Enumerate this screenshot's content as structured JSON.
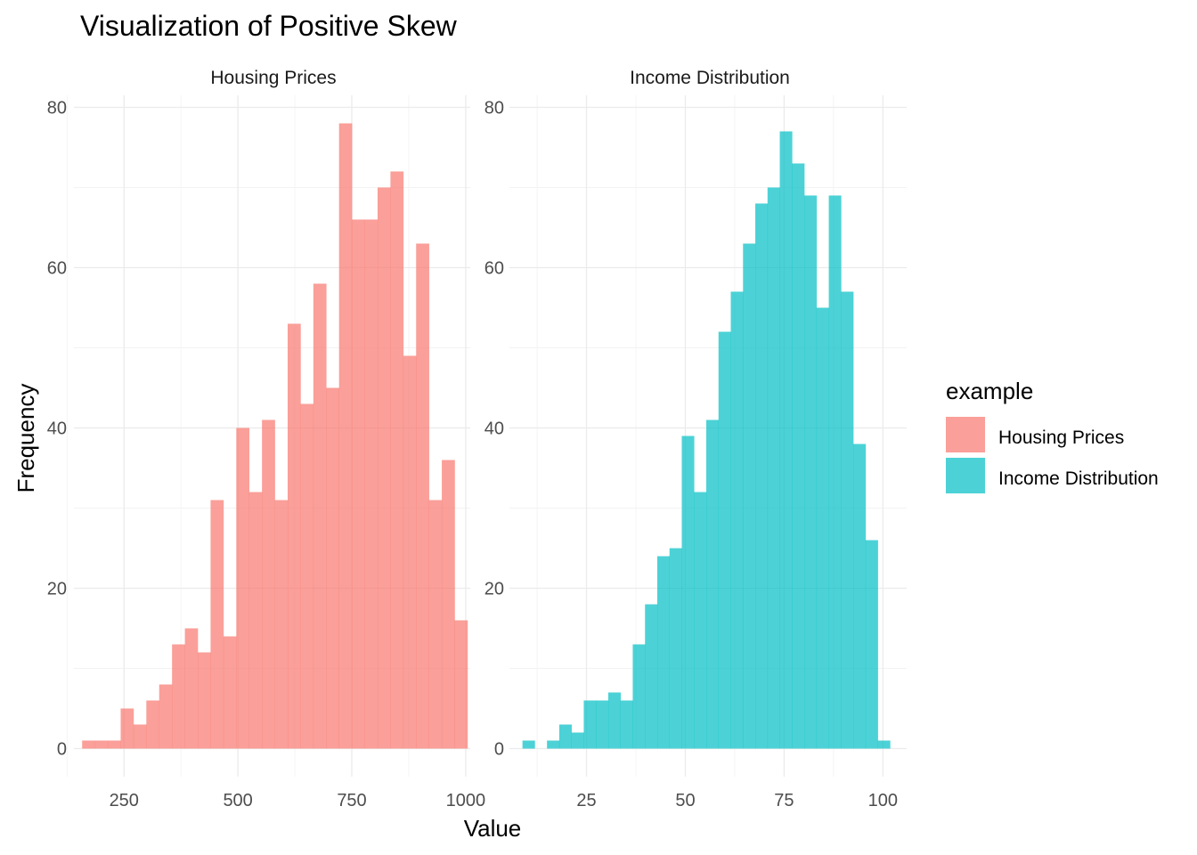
{
  "title": "Visualization of Positive Skew",
  "xlabel": "Value",
  "ylabel": "Frequency",
  "legend": {
    "title": "example",
    "placement": "right",
    "items": [
      {
        "label": "Housing Prices",
        "color": "#F8766D"
      },
      {
        "label": "Income Distribution",
        "color": "#00BFC4"
      }
    ]
  },
  "chart_data": [
    {
      "type": "bar",
      "subtype": "histogram",
      "panel": "Housing Prices",
      "color": "#F8766D",
      "opacity": 0.7,
      "grid": true,
      "xlim": [
        140,
        1010
      ],
      "ylim": [
        -3.5,
        81.5
      ],
      "xticks": [
        250,
        500,
        750,
        1000
      ],
      "xminor": [
        125,
        375,
        625,
        875
      ],
      "yticks": [
        0,
        20,
        40,
        60,
        80
      ],
      "yminor": [
        10,
        30,
        50,
        70
      ],
      "bin_start": 158,
      "bin_width": 28.2,
      "counts": [
        1,
        1,
        1,
        5,
        3,
        6,
        8,
        13,
        15,
        12,
        31,
        14,
        40,
        32,
        41,
        31,
        53,
        43,
        58,
        45,
        78,
        66,
        66,
        70,
        72,
        49,
        63,
        31,
        36,
        16
      ]
    },
    {
      "type": "bar",
      "subtype": "histogram",
      "panel": "Income Distribution",
      "color": "#00BFC4",
      "opacity": 0.7,
      "grid": true,
      "xlim": [
        5.5,
        106
      ],
      "ylim": [
        -3.5,
        81.5
      ],
      "xticks": [
        25,
        50,
        75,
        100
      ],
      "xminor": [
        12.5,
        37.5,
        62.5,
        87.5
      ],
      "yticks": [
        0,
        20,
        40,
        60,
        80
      ],
      "yminor": [
        10,
        30,
        50,
        70
      ],
      "bin_start": 8.8,
      "bin_width": 3.1,
      "counts": [
        1,
        0,
        1,
        3,
        2,
        6,
        6,
        7,
        6,
        13,
        18,
        24,
        25,
        39,
        32,
        41,
        52,
        57,
        63,
        68,
        70,
        77,
        73,
        69,
        55,
        69,
        57,
        38,
        26,
        1
      ]
    }
  ]
}
